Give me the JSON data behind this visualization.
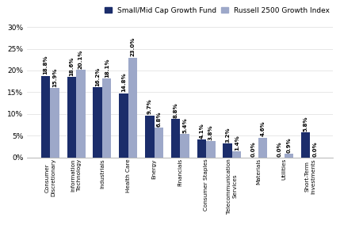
{
  "categories": [
    "Consumer\nDiscretionary",
    "Information\nTechnology",
    "Industrials",
    "Health Care",
    "Energy",
    "Financials",
    "Consumer Staples",
    "Telecommunication\nServices",
    "Materials",
    "Utilities",
    "Short-Term\nInvestments"
  ],
  "fund_values": [
    18.8,
    18.6,
    16.2,
    14.8,
    9.7,
    8.8,
    4.1,
    3.2,
    0.0,
    0.0,
    5.8
  ],
  "index_values": [
    15.9,
    20.1,
    18.1,
    23.0,
    6.8,
    5.4,
    3.8,
    1.4,
    4.6,
    0.9,
    0.0
  ],
  "fund_color": "#1b2d6b",
  "index_color": "#9da8c9",
  "fund_label": "Small/Mid Cap Growth Fund",
  "index_label": "Russell 2500 Growth Index",
  "ylim": [
    0,
    30
  ],
  "yticks": [
    0,
    5,
    10,
    15,
    20,
    25,
    30
  ],
  "bar_width": 0.35,
  "value_fontsize": 5.0,
  "tick_fontsize": 6.5,
  "legend_fontsize": 6.5,
  "xlabel_fontsize": 5.2,
  "background_color": "#ffffff"
}
